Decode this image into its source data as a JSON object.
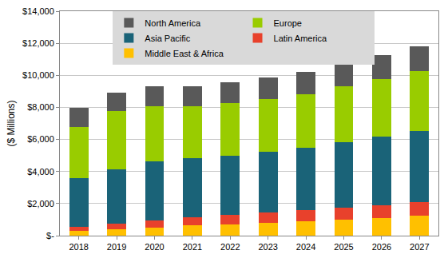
{
  "chart_data": {
    "type": "bar",
    "stacked": true,
    "grid": true,
    "legend": "top",
    "y_label": "($ Millions)",
    "categories": [
      "2018",
      "2019",
      "2020",
      "2021",
      "2022",
      "2023",
      "2024",
      "2025",
      "2026",
      "2027"
    ],
    "ylim": [
      0,
      14000
    ],
    "yticks": [
      {
        "value": 0,
        "label": "$-"
      },
      {
        "value": 2000,
        "label": "$2,000"
      },
      {
        "value": 4000,
        "label": "$4,000"
      },
      {
        "value": 6000,
        "label": "$6,000"
      },
      {
        "value": 8000,
        "label": "$8,000"
      },
      {
        "value": 10000,
        "label": "$10,000"
      },
      {
        "value": 12000,
        "label": "$12,000"
      },
      {
        "value": 14000,
        "label": "$14,000"
      }
    ],
    "series": [
      {
        "name": "Middle East & Africa",
        "color": "#ffc000",
        "values": [
          300,
          400,
          500,
          650,
          700,
          800,
          900,
          1000,
          1100,
          1250
        ]
      },
      {
        "name": "Latin America",
        "color": "#e8412c",
        "values": [
          250,
          350,
          450,
          500,
          600,
          650,
          700,
          750,
          800,
          850
        ]
      },
      {
        "name": "Asia Pacific",
        "color": "#1a6378",
        "values": [
          3050,
          3400,
          3700,
          3700,
          3700,
          3800,
          3900,
          4100,
          4300,
          4450
        ]
      },
      {
        "name": "Europe",
        "color": "#99cc00",
        "values": [
          3200,
          3600,
          3400,
          3200,
          3250,
          3250,
          3300,
          3450,
          3550,
          3700
        ]
      },
      {
        "name": "North America",
        "color": "#595959",
        "values": [
          1150,
          1150,
          1250,
          1250,
          1300,
          1350,
          1400,
          1450,
          1500,
          1550
        ]
      }
    ]
  }
}
